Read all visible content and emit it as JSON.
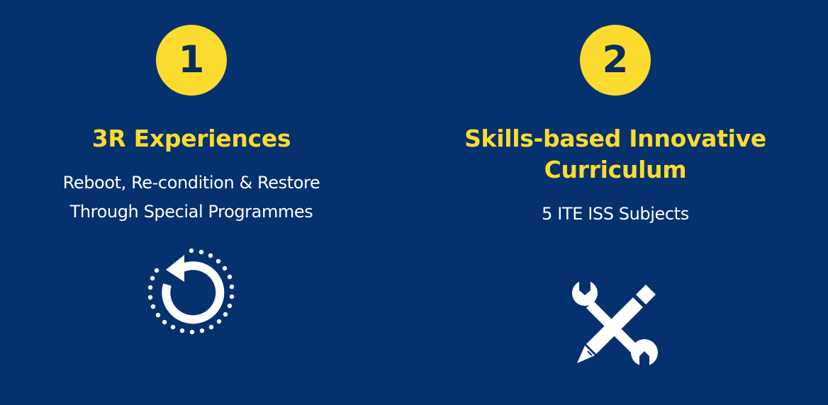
{
  "cards": [
    {
      "number": "1",
      "title": "3R Experiences",
      "description_lines": [
        "Reboot, Re-condition & Restore",
        "Through Special Programmes"
      ],
      "icon": "restart-icon"
    },
    {
      "number": "2",
      "title_lines": [
        "Skills-based Innovative",
        "Curriculum"
      ],
      "description": "5 ITE ISS Subjects",
      "icon": "wrench-pencil-icon"
    }
  ],
  "colors": {
    "background": "#06316f",
    "accent": "#fbdc2e",
    "text": "#ffffff"
  }
}
